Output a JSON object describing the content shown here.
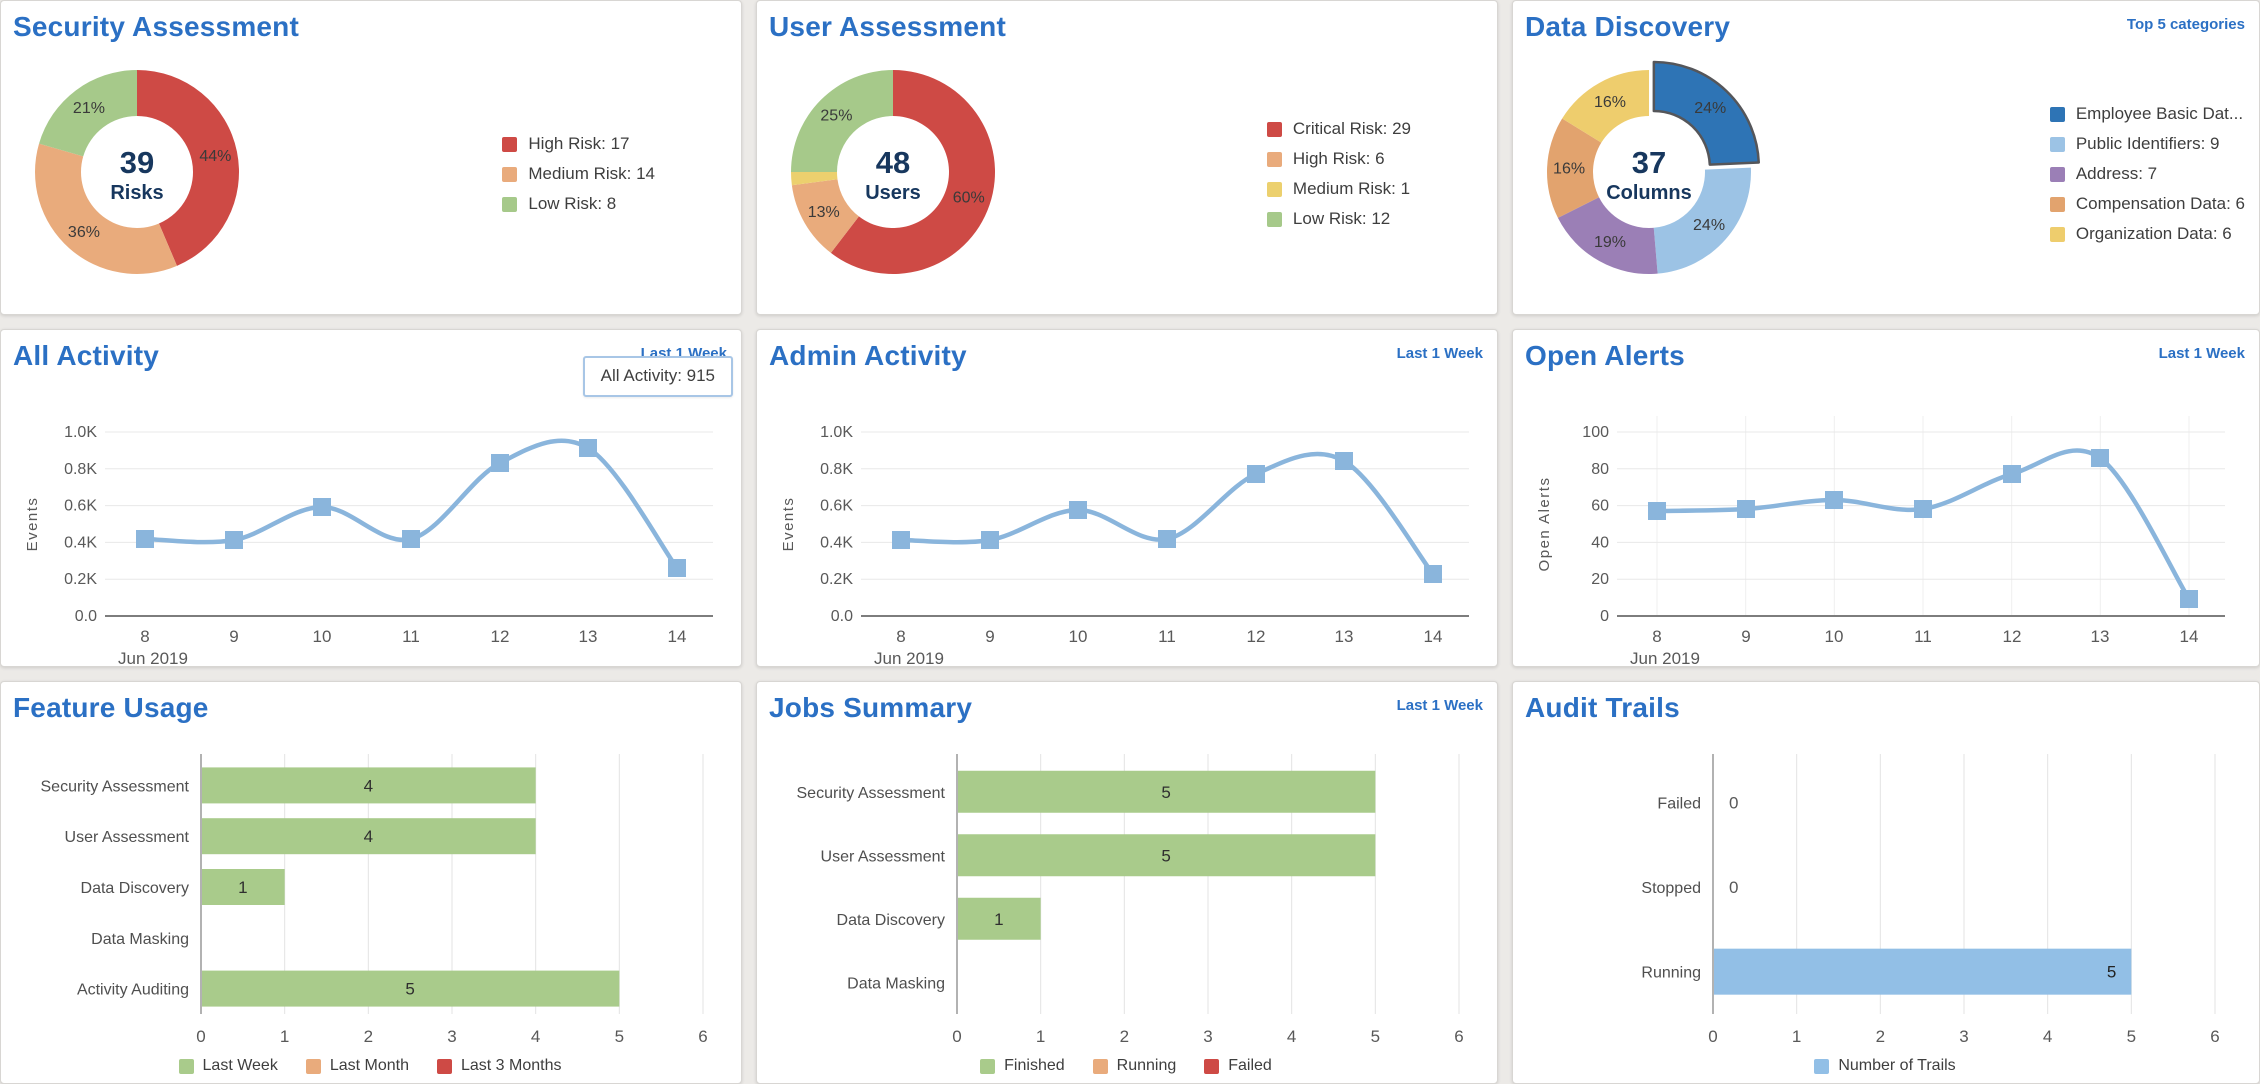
{
  "colors": {
    "title_blue": "#2b70c4",
    "page_background": "#eceae7",
    "panel_background": "#ffffff",
    "risk_red": "#ce4a45",
    "risk_orange": "#e9ab7c",
    "risk_yellow": "#ecd06e",
    "risk_green": "#a6c98a",
    "line_blue": "#8ab5dc",
    "bar_green": "#a9cb8b",
    "bar_blue": "#92bfe6",
    "dd_dark_blue": "#2e74b5",
    "dd_light_blue": "#9cc3e5",
    "dd_purple": "#9b7fb6",
    "dd_orange": "#e2a36e",
    "dd_yellow": "#eecd6d"
  },
  "panels": {
    "security_assessment": {
      "title": "Security Assessment"
    },
    "user_assessment": {
      "title": "User Assessment"
    },
    "data_discovery": {
      "title": "Data Discovery",
      "badge": "Top 5 categories"
    },
    "all_activity": {
      "title": "All Activity",
      "badge": "Last 1 Week",
      "tooltip": "All Activity:  915"
    },
    "admin_activity": {
      "title": "Admin Activity",
      "badge": "Last 1 Week"
    },
    "open_alerts": {
      "title": "Open Alerts",
      "badge": "Last 1 Week"
    },
    "feature_usage": {
      "title": "Feature Usage"
    },
    "jobs_summary": {
      "title": "Jobs Summary",
      "badge": "Last 1 Week"
    },
    "audit_trails": {
      "title": "Audit Trails"
    }
  },
  "chart_data": [
    {
      "id": "security-donut",
      "type": "pie",
      "title": "Security Assessment",
      "center_value": "39",
      "center_label": "Risks",
      "slices": [
        {
          "label": "High Risk",
          "value": 17,
          "pct": "44%",
          "color": "#ce4a45",
          "legend": "High Risk: 17"
        },
        {
          "label": "Medium Risk",
          "value": 14,
          "pct": "36%",
          "color": "#e9ab7c",
          "legend": "Medium Risk: 14"
        },
        {
          "label": "Low Risk",
          "value": 8,
          "pct": "21%",
          "color": "#a6c98a",
          "legend": "Low Risk: 8"
        }
      ]
    },
    {
      "id": "user-donut",
      "type": "pie",
      "title": "User Assessment",
      "center_value": "48",
      "center_label": "Users",
      "slices": [
        {
          "label": "Critical Risk",
          "value": 29,
          "pct": "60%",
          "color": "#ce4a45",
          "legend": "Critical Risk: 29"
        },
        {
          "label": "High Risk",
          "value": 6,
          "pct": "13%",
          "color": "#e9ab7c",
          "legend": "High Risk: 6"
        },
        {
          "label": "Medium Risk",
          "value": 1,
          "pct": "",
          "color": "#ecd06e",
          "legend": "Medium Risk: 1"
        },
        {
          "label": "Low Risk",
          "value": 12,
          "pct": "25%",
          "color": "#a6c98a",
          "legend": "Low Risk: 12"
        }
      ]
    },
    {
      "id": "dd-donut",
      "type": "pie",
      "title": "Data Discovery",
      "center_value": "37",
      "center_label": "Columns",
      "slices": [
        {
          "label": "Employee Basic Data",
          "value": 9,
          "pct": "24%",
          "color": "#2e74b5",
          "legend": "Employee Basic Dat...",
          "highlight": true
        },
        {
          "label": "Public Identifiers",
          "value": 9,
          "pct": "24%",
          "color": "#9cc3e5",
          "legend": "Public Identifiers: 9"
        },
        {
          "label": "Address",
          "value": 7,
          "pct": "19%",
          "color": "#9b7fb6",
          "legend": "Address: 7"
        },
        {
          "label": "Compensation Data",
          "value": 6,
          "pct": "16%",
          "color": "#e2a36e",
          "legend": "Compensation Data: 6"
        },
        {
          "label": "Organization Data",
          "value": 6,
          "pct": "16%",
          "color": "#eecd6d",
          "legend": "Organization Data: 6"
        }
      ]
    },
    {
      "id": "all-activity",
      "type": "line",
      "title": "All Activity",
      "x": [
        8,
        9,
        10,
        11,
        12,
        13,
        14
      ],
      "x_footer": "Jun 2019",
      "values": [
        420,
        415,
        590,
        420,
        830,
        915,
        260
      ],
      "ylabel": "Events",
      "yticks": [
        0,
        200,
        400,
        600,
        800,
        1000
      ],
      "ytick_labels": [
        "0.0",
        "0.2K",
        "0.4K",
        "0.6K",
        "0.8K",
        "1.0K"
      ],
      "ylim": [
        0,
        1000
      ],
      "color": "#8ab5dc",
      "vgrid": false,
      "tooltip_point_index": 5,
      "tooltip_value": 915
    },
    {
      "id": "admin-activity",
      "type": "line",
      "title": "Admin Activity",
      "x": [
        8,
        9,
        10,
        11,
        12,
        13,
        14
      ],
      "x_footer": "Jun 2019",
      "values": [
        415,
        415,
        575,
        420,
        770,
        845,
        230
      ],
      "ylabel": "Events",
      "yticks": [
        0,
        200,
        400,
        600,
        800,
        1000
      ],
      "ytick_labels": [
        "0.0",
        "0.2K",
        "0.4K",
        "0.6K",
        "0.8K",
        "1.0K"
      ],
      "ylim": [
        0,
        1000
      ],
      "color": "#8ab5dc",
      "vgrid": false
    },
    {
      "id": "open-alerts",
      "type": "line",
      "title": "Open Alerts",
      "x": [
        8,
        9,
        10,
        11,
        12,
        13,
        14
      ],
      "x_footer": "Jun 2019",
      "values": [
        57,
        58,
        63,
        58,
        77,
        86,
        9
      ],
      "ylabel": "Open Alerts",
      "yticks": [
        0,
        20,
        40,
        60,
        80,
        100
      ],
      "ytick_labels": [
        "0",
        "20",
        "40",
        "60",
        "80",
        "100"
      ],
      "ylim": [
        0,
        100
      ],
      "color": "#8ab5dc",
      "vgrid": true
    },
    {
      "id": "feature-usage",
      "type": "bar",
      "title": "Feature Usage",
      "categories": [
        "Security Assessment",
        "User Assessment",
        "Data Discovery",
        "Data Masking",
        "Activity Auditing"
      ],
      "values": [
        4,
        4,
        1,
        0,
        5
      ],
      "bar_color": "#a9cb8b",
      "xticks": [
        0,
        1,
        2,
        3,
        4,
        5,
        6
      ],
      "xlim": [
        0,
        6
      ],
      "label_align": "center",
      "zero_labels": false,
      "legend": [
        {
          "label": "Last Week",
          "color": "#a9cb8b"
        },
        {
          "label": "Last Month",
          "color": "#e9ab7c"
        },
        {
          "label": "Last 3 Months",
          "color": "#ce4a45"
        }
      ]
    },
    {
      "id": "jobs-summary",
      "type": "bar",
      "title": "Jobs Summary",
      "categories": [
        "Security Assessment",
        "User Assessment",
        "Data Discovery",
        "Data Masking"
      ],
      "values": [
        5,
        5,
        1,
        0
      ],
      "bar_color": "#a9cb8b",
      "xticks": [
        0,
        1,
        2,
        3,
        4,
        5,
        6
      ],
      "xlim": [
        0,
        6
      ],
      "label_align": "center",
      "zero_labels": false,
      "legend": [
        {
          "label": "Finished",
          "color": "#a9cb8b"
        },
        {
          "label": "Running",
          "color": "#e9ab7c"
        },
        {
          "label": "Failed",
          "color": "#ce4a45"
        }
      ]
    },
    {
      "id": "audit-trails",
      "type": "bar",
      "title": "Audit Trails",
      "categories": [
        "Failed",
        "Stopped",
        "Running"
      ],
      "values": [
        0,
        0,
        5
      ],
      "bar_color": "#92bfe6",
      "xticks": [
        0,
        1,
        2,
        3,
        4,
        5,
        6
      ],
      "xlim": [
        0,
        6
      ],
      "label_align": "end",
      "zero_labels": true,
      "legend": [
        {
          "label": "Number of Trails",
          "color": "#92bfe6"
        }
      ]
    }
  ]
}
